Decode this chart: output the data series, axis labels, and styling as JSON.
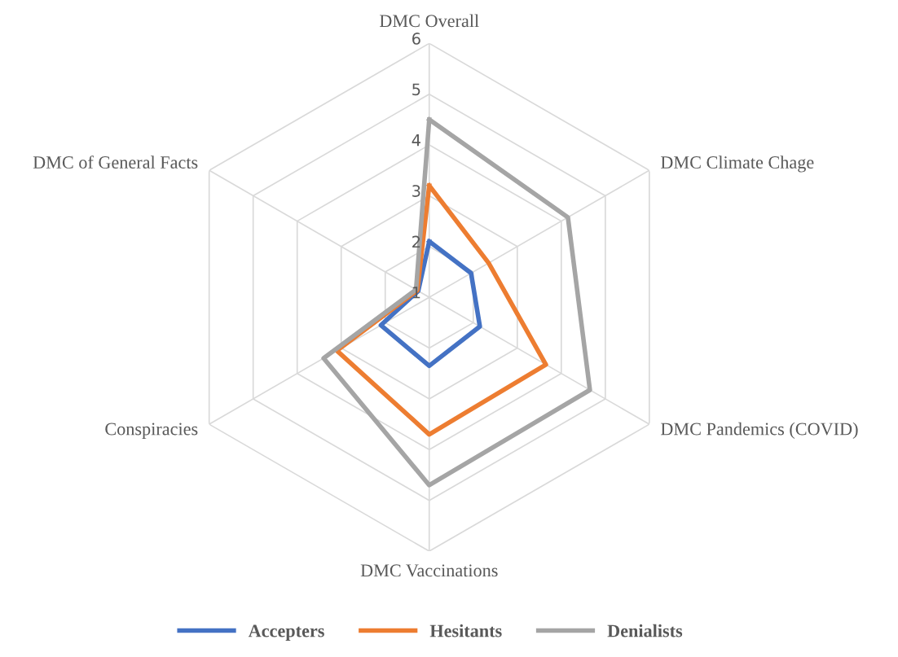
{
  "chart_data": {
    "type": "radar",
    "categories": [
      "DMC Overall",
      "DMC Climate Chage",
      "DMC Pandemics (COVID)",
      "DMC Vaccinations",
      "Conspiracies",
      "DMC of General Facts"
    ],
    "ylim": [
      1,
      6
    ],
    "yticks": [
      1,
      2,
      3,
      4,
      5,
      6
    ],
    "grid": true,
    "legend": "bottom",
    "series": [
      {
        "name": "Accepters",
        "color": "#4472c4",
        "values": [
          2.1,
          1.95,
          2.15,
          2.35,
          2.1,
          1.25
        ]
      },
      {
        "name": "Hesitants",
        "color": "#ed7d31",
        "values": [
          3.2,
          2.35,
          3.65,
          3.7,
          3.1,
          1.27
        ]
      },
      {
        "name": "Denialists",
        "color": "#a5a5a5",
        "values": [
          4.5,
          4.15,
          4.65,
          4.7,
          3.4,
          1.3
        ]
      }
    ]
  }
}
